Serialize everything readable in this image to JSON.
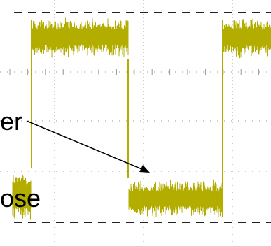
{
  "labels": {
    "upper": "er",
    "lower": "ose"
  }
}
